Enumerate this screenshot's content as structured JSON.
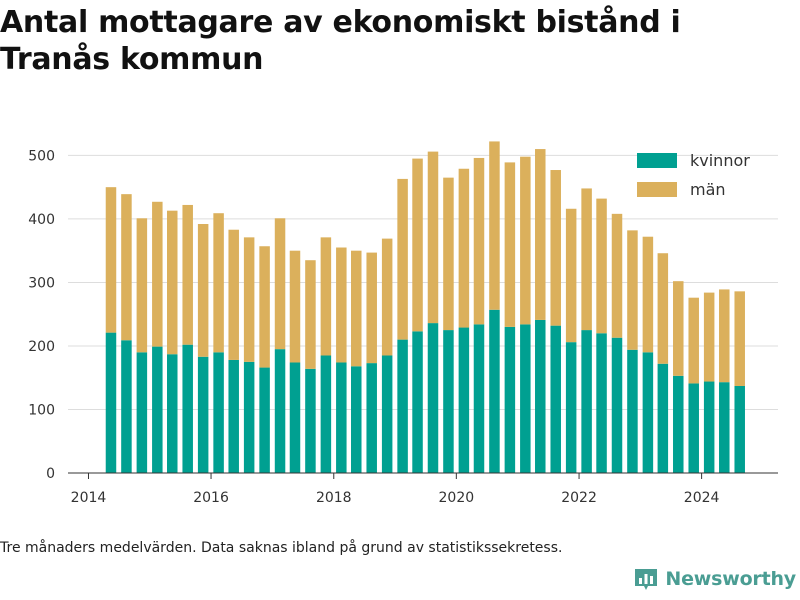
{
  "title": "Antal mottagare av ekonomiskt bistånd i Tranås kommun",
  "note": "Tre månaders medelvärden. Data saknas ibland på grund av statistikssekretess.",
  "brand": {
    "name": "Newsworthy",
    "icon": "bar-chart-logo-icon",
    "color": "#4a9d93"
  },
  "chart_data": {
    "type": "bar",
    "stacked": true,
    "x_type": "date",
    "x": [
      "2014-05-15",
      "2014-08-15",
      "2014-11-15",
      "2015-02-15",
      "2015-05-15",
      "2015-08-15",
      "2015-11-15",
      "2016-02-15",
      "2016-05-15",
      "2016-08-15",
      "2016-11-15",
      "2017-02-15",
      "2017-05-15",
      "2017-08-15",
      "2017-11-15",
      "2018-02-15",
      "2018-05-15",
      "2018-08-15",
      "2018-11-15",
      "2019-02-15",
      "2019-05-15",
      "2019-08-15",
      "2019-11-15",
      "2020-02-15",
      "2020-05-15",
      "2020-08-15",
      "2020-11-15",
      "2021-02-15",
      "2021-05-15",
      "2021-08-15",
      "2021-11-15",
      "2022-02-15",
      "2022-05-15",
      "2022-08-15",
      "2022-11-15",
      "2023-02-15",
      "2023-05-15",
      "2023-08-15",
      "2023-11-15",
      "2024-02-15",
      "2024-05-15",
      "2024-08-15"
    ],
    "series": [
      {
        "name": "kvinnor",
        "color": "#00a091",
        "values": [
          221,
          209,
          190,
          199,
          187,
          202,
          183,
          190,
          178,
          175,
          166,
          195,
          174,
          164,
          185,
          174,
          168,
          173,
          185,
          210,
          223,
          236,
          225,
          229,
          234,
          257,
          230,
          234,
          241,
          232,
          206,
          225,
          220,
          213,
          194,
          190,
          172,
          153,
          141,
          144,
          143,
          137
        ]
      },
      {
        "name": "män",
        "color": "#dbb05c",
        "values": [
          229,
          230,
          211,
          228,
          226,
          220,
          209,
          219,
          205,
          196,
          191,
          206,
          176,
          171,
          186,
          181,
          182,
          174,
          184,
          253,
          272,
          270,
          240,
          250,
          262,
          265,
          259,
          264,
          269,
          245,
          210,
          223,
          212,
          195,
          188,
          182,
          174,
          149,
          135,
          140,
          146,
          149
        ]
      }
    ],
    "title": "Antal mottagare av ekonomiskt bistånd i Tranås kommun",
    "xlabel": "",
    "ylabel": "",
    "xlim": [
      "2013-09-01",
      "2025-03-31"
    ],
    "ylim": [
      0,
      540
    ],
    "yticks": [
      0,
      100,
      200,
      300,
      400,
      500
    ],
    "xticks": [
      "2014",
      "2016",
      "2018",
      "2020",
      "2022",
      "2024"
    ],
    "grid": true,
    "legend": "top-right"
  }
}
